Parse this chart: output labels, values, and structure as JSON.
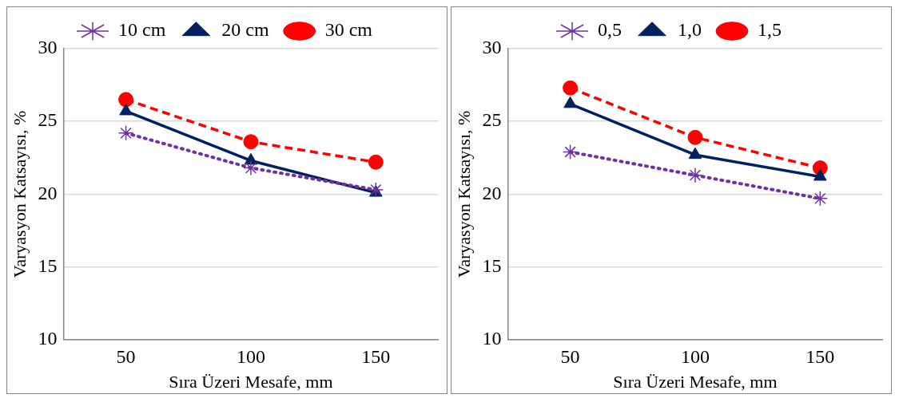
{
  "chart_data": [
    {
      "type": "line",
      "xlabel": "Sıra Üzeri Mesafe, mm",
      "ylabel": "Varyasyon Katsayısı, %",
      "x": [
        50,
        100,
        150
      ],
      "xlim": [
        25,
        175
      ],
      "xticks": [
        50,
        100,
        150
      ],
      "ylim": [
        10,
        30
      ],
      "yticks": [
        10,
        15,
        20,
        25,
        30
      ],
      "grid": "y",
      "legend": "top",
      "series": [
        {
          "name": "10 cm",
          "color": "#7030a0",
          "values": [
            24.2,
            21.8,
            20.3
          ],
          "marker": "cross",
          "line_style": "dotted"
        },
        {
          "name": "20 cm",
          "color": "#002060",
          "values": [
            25.7,
            22.3,
            20.1
          ],
          "marker": "triangle",
          "line_style": "solid"
        },
        {
          "name": "30 cm",
          "color": "#ff0000",
          "values": [
            26.5,
            23.6,
            22.2
          ],
          "marker": "circle",
          "line_style": "dashed"
        }
      ]
    },
    {
      "type": "line",
      "xlabel": "Sıra Üzeri Mesafe, mm",
      "ylabel": "Varyasyon Katsayısı, %",
      "x": [
        50,
        100,
        150
      ],
      "xlim": [
        25,
        175
      ],
      "xticks": [
        50,
        100,
        150
      ],
      "ylim": [
        10,
        30
      ],
      "yticks": [
        10,
        15,
        20,
        25,
        30
      ],
      "grid": "y",
      "legend": "top",
      "series": [
        {
          "name": "0,5",
          "color": "#7030a0",
          "values": [
            22.9,
            21.3,
            19.7
          ],
          "marker": "cross",
          "line_style": "dotted"
        },
        {
          "name": "1,0",
          "color": "#002060",
          "values": [
            26.2,
            22.7,
            21.2
          ],
          "marker": "triangle",
          "line_style": "solid"
        },
        {
          "name": "1,5",
          "color": "#ff0000",
          "values": [
            27.3,
            23.9,
            21.8
          ],
          "marker": "circle",
          "line_style": "dashed"
        }
      ]
    }
  ]
}
